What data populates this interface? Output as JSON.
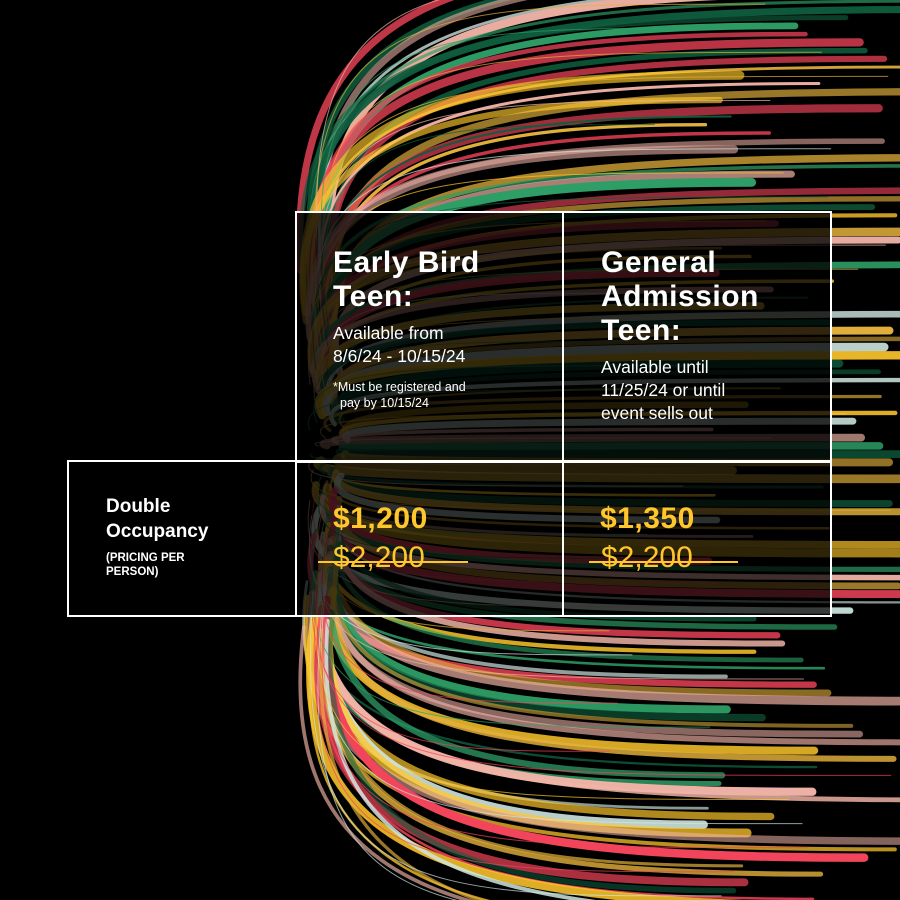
{
  "colors": {
    "background": "#000000",
    "accent": "#ffc72c",
    "text": "#ffffff",
    "stripe_palette": [
      "#ffc72c",
      "#f2445a",
      "#2e9e66",
      "#0f5e3e",
      "#f1b4a7",
      "#cfe6e0",
      "#e3b13c"
    ]
  },
  "tiers": [
    {
      "title_line1": "Early Bird",
      "title_line2": "Teen:",
      "avail_line1": "Available from",
      "avail_line2": "8/6/24 - 10/15/24",
      "note_line1": "*Must be registered and",
      "note_line2": "pay by 10/15/24"
    },
    {
      "title_line1": "General",
      "title_line2": "Admission",
      "title_line3": "Teen:",
      "avail_line1": "Available until",
      "avail_line2": "11/25/24 or until",
      "avail_line3": "event sells out"
    }
  ],
  "row": {
    "label_line1": "Double",
    "label_line2": "Occupancy",
    "sub_line1": "(PRICING PER",
    "sub_line2": "PERSON)"
  },
  "prices": [
    {
      "price": "$1,200",
      "original": "$2,200"
    },
    {
      "price": "$1,350",
      "original": "$2,200"
    }
  ]
}
